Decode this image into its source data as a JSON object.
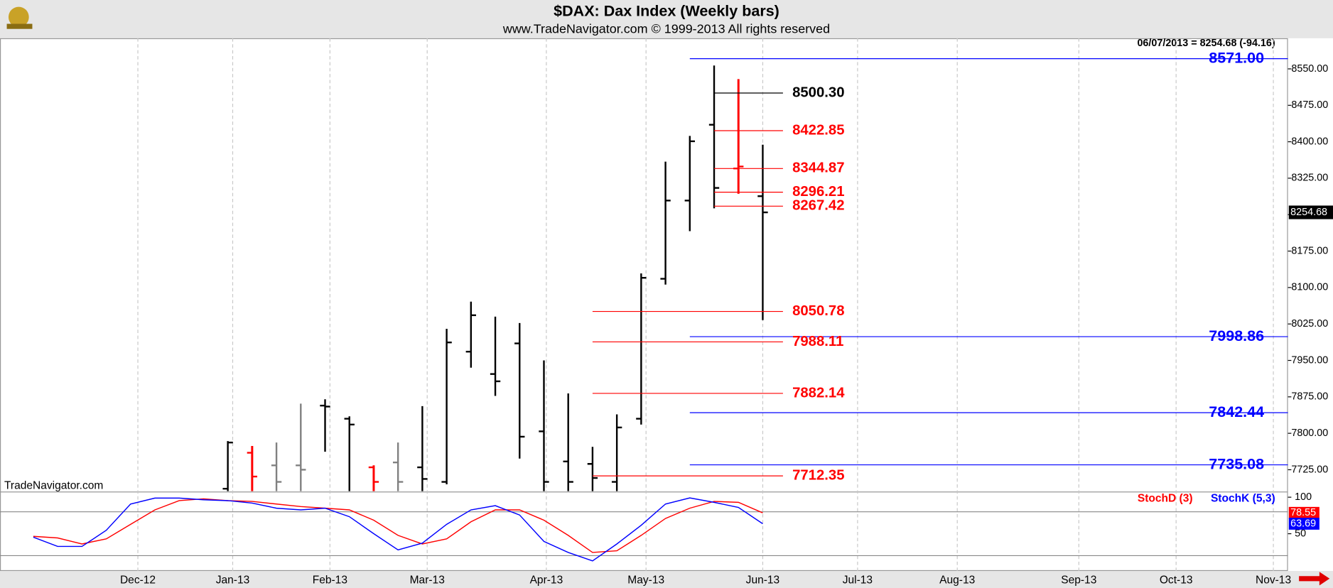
{
  "header": {
    "title": "$DAX:  Dax Index  (Weekly bars)",
    "subtitle": "www.TradeNavigator.com © 1999-2013 All rights reserved",
    "info": "06/07/2013 = 8254.68 (-94.16)",
    "watermark": "TradeNavigator.com"
  },
  "chart_data": [
    {
      "type": "ohlc",
      "x": [
        0,
        1,
        2,
        3,
        4,
        5,
        6,
        7,
        8,
        9,
        10,
        11,
        12,
        13,
        14,
        15,
        16,
        17,
        18,
        19,
        20,
        21,
        22
      ],
      "open": [
        7686,
        7760,
        7734,
        7734,
        7857,
        7830,
        7730,
        7740,
        7730,
        7700,
        7968,
        7922,
        7985,
        7804,
        7742,
        7737,
        7700,
        7830,
        8118,
        8279,
        8435,
        8345,
        8288
      ],
      "high": [
        7784,
        7774,
        7781,
        7861,
        7870,
        7835,
        7734,
        7781,
        7856,
        8015,
        8071,
        8040,
        8027,
        7950,
        7882,
        7772,
        7839,
        8129,
        8359,
        8412,
        8557,
        8529,
        8394
      ],
      "low": [
        7676,
        7650,
        7650,
        7650,
        7762,
        7650,
        7650,
        7650,
        7650,
        7695,
        7935,
        7877,
        7748,
        7650,
        7650,
        7650,
        7650,
        7818,
        8106,
        8216,
        8263,
        8293,
        8033
      ],
      "close": [
        7781,
        7711,
        7700,
        7725,
        7855,
        7818,
        7700,
        7700,
        7706,
        7987,
        8043,
        7907,
        7793,
        7700,
        7700,
        7708,
        7812,
        8120,
        8279,
        8401,
        8305,
        8349,
        8254.68
      ],
      "colors": [
        "#000000",
        "#ff0000",
        "#808080",
        "#808080",
        "#000000",
        "#000000",
        "#ff0000",
        "#808080",
        "#000000",
        "#000000",
        "#000000",
        "#000000",
        "#000000",
        "#000000",
        "#000000",
        "#000000",
        "#000000",
        "#000000",
        "#000000",
        "#000000",
        "#000000",
        "#ff0000",
        "#000000"
      ],
      "xlim": [
        -9.37,
        43.6
      ],
      "ylim": [
        7681,
        8613
      ],
      "yticks": [
        {
          "value": 7725,
          "label": "7725.00"
        },
        {
          "value": 7800,
          "label": "7800.00"
        },
        {
          "value": 7875,
          "label": "7875.00"
        },
        {
          "value": 7950,
          "label": "7950.00"
        },
        {
          "value": 8025,
          "label": "8025.00"
        },
        {
          "value": 8100,
          "label": "8100.00"
        },
        {
          "value": 8175,
          "label": "8175.00"
        },
        {
          "value": 8250,
          "label": "8250.00"
        },
        {
          "value": 8325,
          "label": "8325.00"
        },
        {
          "value": 8400,
          "label": "8400.00"
        },
        {
          "value": 8475,
          "label": "8475.00"
        },
        {
          "value": 8550,
          "label": "8550.00"
        }
      ],
      "levels": [
        {
          "value": 8571,
          "label": "8571.00",
          "color": "#0000ff",
          "from": 19
        },
        {
          "value": 8500.3,
          "label": "8500.30",
          "color": "#000000",
          "from": 20
        },
        {
          "value": 8422.85,
          "color": "#ff0000",
          "from": 20
        },
        {
          "value": 8344.87,
          "color": "#ff0000",
          "from": 20
        },
        {
          "value": 8296.21,
          "color": "#ff0000",
          "from": 20
        },
        {
          "value": 8267.42,
          "color": "#ff0000",
          "from": 20
        },
        {
          "value": 8050.78,
          "color": "#ff0000",
          "from": 15
        },
        {
          "value": 7998.86,
          "color": "#0000ff",
          "from": 19
        },
        {
          "value": 7988.11,
          "color": "#ff0000",
          "from": 15
        },
        {
          "value": 7882.14,
          "color": "#ff0000",
          "from": 15
        },
        {
          "value": 7842.44,
          "color": "#0000ff",
          "from": 19
        },
        {
          "value": 7735.08,
          "color": "#0000ff",
          "from": 19
        },
        {
          "value": 7712.35,
          "color": "#ff0000",
          "from": 15
        }
      ]
    },
    {
      "type": "line",
      "x": [
        -8,
        -7,
        -6,
        -5,
        -4,
        -3,
        -2,
        -1,
        0,
        1,
        2,
        3,
        4,
        5,
        6,
        7,
        8,
        9,
        10,
        11,
        12,
        13,
        14,
        15,
        16,
        17,
        18,
        19,
        20,
        21,
        22
      ],
      "series": [
        {
          "name": "StochD (3)",
          "color": "#ff0000",
          "values": [
            46.5,
            44.2,
            36,
            43,
            62.8,
            82.6,
            95.3,
            97.7,
            95.3,
            94.2,
            90.7,
            87.2,
            84.9,
            82.6,
            68.6,
            47.7,
            36,
            43,
            66.3,
            82.6,
            82.6,
            68.6,
            47.7,
            24.4,
            26.7,
            47.7,
            70.9,
            84.9,
            94.2,
            93,
            78.55
          ]
        },
        {
          "name": "StochK (5,3)",
          "color": "#0000ff",
          "values": [
            45.3,
            32.6,
            32.6,
            54.7,
            90.7,
            98.8,
            98.8,
            96.5,
            95.3,
            91.9,
            84.9,
            82.6,
            84.9,
            73.3,
            50,
            27.9,
            37.2,
            62.8,
            82.6,
            88.4,
            75.6,
            39.5,
            24.4,
            12.8,
            36,
            61.6,
            90.7,
            99,
            93,
            86,
            63.69
          ]
        }
      ],
      "xlim": [
        -9.37,
        43.6
      ],
      "ylim": [
        -1,
        106
      ],
      "yticks": [
        100,
        50
      ],
      "hlines": [
        80,
        20
      ],
      "xticks": [
        {
          "value": -3.7,
          "label": "Dec-12"
        },
        {
          "value": 0.2,
          "label": "Jan-13"
        },
        {
          "value": 4.2,
          "label": "Feb-13"
        },
        {
          "value": 8.2,
          "label": "Mar-13"
        },
        {
          "value": 13.1,
          "label": "Apr-13"
        },
        {
          "value": 17.2,
          "label": "May-13"
        },
        {
          "value": 22,
          "label": "Jun-13"
        },
        {
          "value": 25.9,
          "label": "Jul-13"
        },
        {
          "value": 30,
          "label": "Aug-13"
        },
        {
          "value": 35,
          "label": "Sep-13"
        },
        {
          "value": 39,
          "label": "Oct-13"
        },
        {
          "value": 43,
          "label": "Nov-13"
        }
      ]
    }
  ]
}
